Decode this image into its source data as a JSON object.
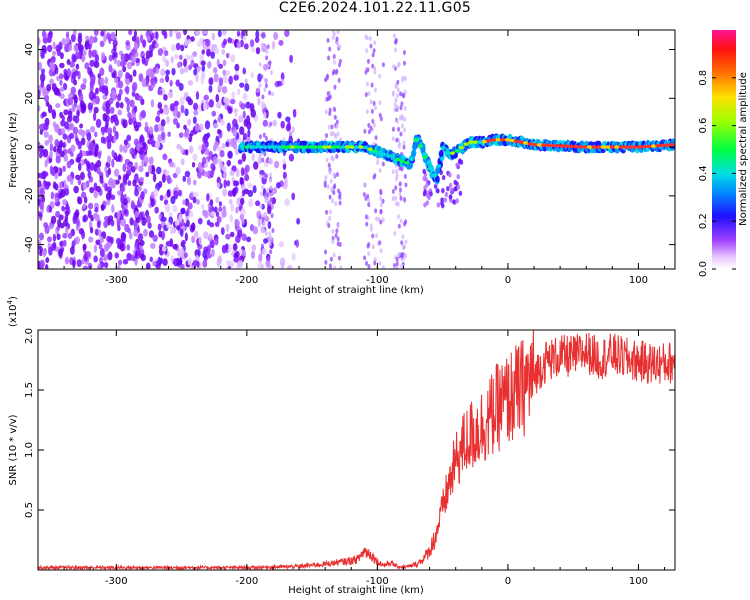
{
  "title": "C2E6.2024.101.22.11.G05",
  "chart_data": [
    {
      "type": "heatmap",
      "xlabel": "Height of straight line (km)",
      "ylabel": "Frequency (Hz)",
      "xlim": [
        -360,
        128
      ],
      "ylim": [
        -50,
        48
      ],
      "x_ticks": [
        -300,
        -200,
        -100,
        0,
        100
      ],
      "y_ticks": [
        -40,
        -20,
        0,
        20,
        40
      ],
      "colorbar": {
        "label": "Normalized spectral amplitude",
        "range": [
          0,
          1
        ],
        "ticks": [
          0.0,
          0.2,
          0.4,
          0.6,
          0.8
        ]
      },
      "grid": false,
      "ridge": {
        "description_free": true,
        "x": [
          -205,
          -190,
          -170,
          -150,
          -130,
          -110,
          -95,
          -85,
          -75,
          -70,
          -65,
          -60,
          -55,
          -50,
          -45,
          -40,
          -30,
          -20,
          -10,
          0,
          20,
          60,
          100,
          128
        ],
        "y": [
          0,
          0,
          0,
          0,
          0,
          0,
          -3,
          -5,
          -7,
          4,
          -2,
          -9,
          -13,
          0,
          -3,
          -2,
          2,
          2,
          3,
          3,
          1,
          0,
          0,
          1
        ]
      }
    },
    {
      "type": "line",
      "xlabel": "Height of straight line (km)",
      "ylabel": "SNR (10 * v/v)",
      "y_multiplier": "(x10",
      "y_multiplier_exp": "4",
      "xlim": [
        -360,
        128
      ],
      "ylim": [
        0,
        20000
      ],
      "x_ticks": [
        -300,
        -200,
        -100,
        0,
        100
      ],
      "y_ticks": [
        5000,
        10000,
        15000,
        20000
      ],
      "y_tick_labels": [
        "0.5",
        "1.0",
        "1.5",
        "2.0"
      ],
      "color": "#e83030",
      "grid": false,
      "series": [
        {
          "x": [
            -360,
            -320,
            -280,
            -240,
            -200,
            -180,
            -160,
            -140,
            -125,
            -115,
            -110,
            -105,
            -100,
            -95,
            -90,
            -85,
            -80,
            -75,
            -70,
            -65,
            -60,
            -55,
            -50,
            -45,
            -40,
            -35,
            -30,
            -25,
            -20,
            -15,
            -10,
            -5,
            0,
            5,
            10,
            15,
            20,
            25,
            30,
            40,
            50,
            60,
            70,
            80,
            90,
            100,
            110,
            120,
            128
          ],
          "y": [
            200,
            200,
            200,
            200,
            200,
            250,
            300,
            500,
            700,
            900,
            1600,
            1300,
            700,
            400,
            600,
            300,
            250,
            300,
            500,
            900,
            1600,
            3000,
            5200,
            7200,
            9000,
            10200,
            11000,
            11500,
            12000,
            12500,
            13300,
            13800,
            14200,
            14700,
            15000,
            15700,
            16200,
            16900,
            17500,
            17800,
            17800,
            18200,
            17600,
            18000,
            17600,
            17400,
            17200,
            17200,
            17400
          ]
        }
      ]
    }
  ]
}
